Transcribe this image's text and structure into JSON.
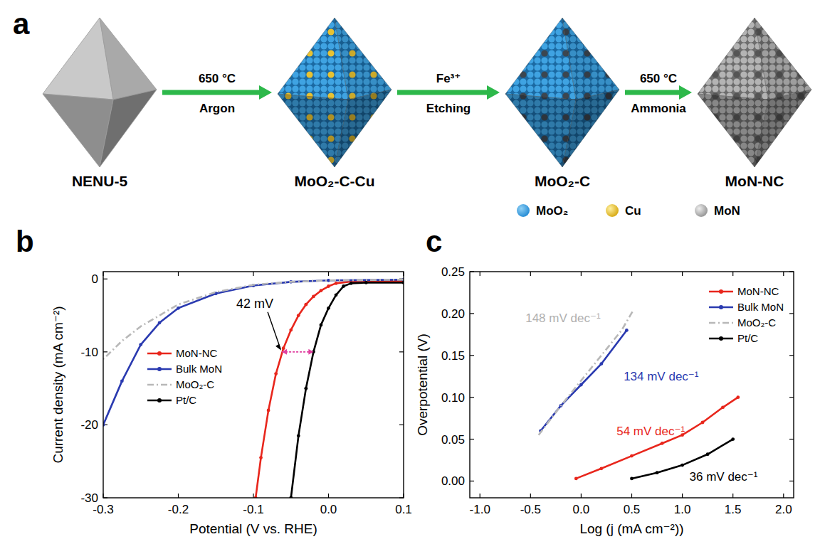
{
  "diagram": {
    "panel": "a",
    "nodes": [
      {
        "label": "NENU-5"
      },
      {
        "label": "MoO₂-C-Cu"
      },
      {
        "label": "MoO₂-C"
      },
      {
        "label": "MoN-NC"
      }
    ],
    "arrows": [
      {
        "above": "650 °C",
        "below": "Argon"
      },
      {
        "above": "Fe³⁺",
        "below": "Etching"
      },
      {
        "above": "650 °C",
        "below": "Ammonia"
      }
    ],
    "key": [
      {
        "label": "MoO₂"
      },
      {
        "label": "Cu"
      },
      {
        "label": "MoN"
      }
    ]
  },
  "chart_data": [
    {
      "panel": "b",
      "type": "line",
      "x_label": "Potential (V vs. RHE)",
      "y_label": "Current density (mA cm⁻²)",
      "xlim": [
        -0.3,
        0.1
      ],
      "ylim": [
        -30,
        1
      ],
      "xticks": [
        -0.3,
        -0.2,
        -0.1,
        {
          "value": 0,
          "label": "0.0"
        },
        0.1
      ],
      "yticks": [
        -30,
        -20,
        -10,
        0
      ],
      "legend": "center left",
      "series": [
        {
          "name": "MoN-NC",
          "color": "#e8261c",
          "marker": "circle",
          "line_style": "solid",
          "x": [
            0.1,
            0.05,
            0.03,
            0.01,
            0,
            -0.01,
            -0.02,
            -0.03,
            -0.04,
            -0.05,
            -0.06,
            -0.07,
            -0.08,
            -0.09,
            -0.097
          ],
          "values": [
            -0.3,
            -0.3,
            -0.35,
            -0.6,
            -1,
            -1.6,
            -2.4,
            -3.5,
            -5,
            -7,
            -9.5,
            -13,
            -18,
            -24.5,
            -30
          ]
        },
        {
          "name": "Bulk MoN",
          "color": "#2a3ab0",
          "marker": "circle",
          "line_style": "solid",
          "x": [
            0.1,
            0,
            -0.05,
            -0.1,
            -0.15,
            -0.2,
            -0.225,
            -0.25,
            -0.275,
            -0.3
          ],
          "values": [
            -0.1,
            -0.2,
            -0.4,
            -0.9,
            -2,
            -4,
            -6,
            -9,
            -14,
            -20
          ]
        },
        {
          "name": "MoO₂-C",
          "color": "#b8b8b8",
          "marker": "none",
          "line_style": "dashdot",
          "x": [
            0.1,
            0,
            -0.05,
            -0.1,
            -0.15,
            -0.2,
            -0.25,
            -0.275,
            -0.3
          ],
          "values": [
            -0.1,
            -0.2,
            -0.4,
            -0.8,
            -1.8,
            -3.5,
            -6.5,
            -8.5,
            -11
          ]
        },
        {
          "name": "Pt/C",
          "color": "#000000",
          "marker": "circle",
          "line_style": "solid",
          "x": [
            0.1,
            0.05,
            0.03,
            0.02,
            0.01,
            0,
            -0.01,
            -0.02,
            -0.03,
            -0.04,
            -0.05
          ],
          "values": [
            -0.5,
            -0.5,
            -0.6,
            -1,
            -2.2,
            -4,
            -6.3,
            -10,
            -15,
            -21.5,
            -30
          ]
        }
      ],
      "annotations": [
        {
          "text": "42 mV",
          "x": [
            -0.062,
            -0.02
          ],
          "y": -10,
          "color": "#e040a0"
        }
      ]
    },
    {
      "panel": "c",
      "type": "line",
      "x_label": "Log (j (mA cm⁻²))",
      "y_label": "Overpotential (V)",
      "xlim": [
        -1.1,
        2.1
      ],
      "ylim": [
        -0.02,
        0.25
      ],
      "xticks": [
        {
          "value": -1,
          "label": "-1.0"
        },
        -0.5,
        {
          "value": 0,
          "label": "0.0"
        },
        0.5,
        {
          "value": 1,
          "label": "1.0"
        },
        1.5,
        {
          "value": 2,
          "label": "2.0"
        }
      ],
      "yticks": [
        {
          "value": 0,
          "label": "0.00"
        },
        0.05,
        {
          "value": 0.1,
          "label": "0.10"
        },
        0.15,
        {
          "value": 0.2,
          "label": "0.20"
        },
        0.25
      ],
      "legend": "upper right",
      "series": [
        {
          "name": "MoN-NC",
          "color": "#e8261c",
          "marker": "circle",
          "line_style": "solid",
          "x": [
            -0.05,
            0.2,
            0.5,
            0.8,
            1.0,
            1.2,
            1.4,
            1.55
          ],
          "values": [
            0.003,
            0.015,
            0.03,
            0.045,
            0.055,
            0.07,
            0.088,
            0.1
          ]
        },
        {
          "name": "Bulk MoN",
          "color": "#2a3ab0",
          "marker": "circle",
          "line_style": "solid",
          "x": [
            -0.4,
            -0.2,
            0,
            0.2,
            0.45
          ],
          "values": [
            0.06,
            0.09,
            0.115,
            0.14,
            0.18
          ]
        },
        {
          "name": "MoO₂-C",
          "color": "#b8b8b8",
          "marker": "none",
          "line_style": "dashdot",
          "x": [
            -0.42,
            -0.2,
            0,
            0.2,
            0.4,
            0.52
          ],
          "values": [
            0.055,
            0.09,
            0.12,
            0.15,
            0.18,
            0.205
          ]
        },
        {
          "name": "Pt/C",
          "color": "#000000",
          "marker": "circle",
          "line_style": "solid",
          "x": [
            0.5,
            0.75,
            1.0,
            1.25,
            1.5
          ],
          "values": [
            0.003,
            0.01,
            0.019,
            0.032,
            0.05
          ]
        }
      ],
      "annotations": [
        {
          "text": "148 mV dec⁻¹",
          "x": -0.55,
          "y": 0.19,
          "color": "#b0b0b0"
        },
        {
          "text": "134 mV dec⁻¹",
          "x": 0.42,
          "y": 0.12,
          "color": "#2a3ab0"
        },
        {
          "text": "54 mV dec⁻¹",
          "x": 0.35,
          "y": 0.055,
          "color": "#e8261c"
        },
        {
          "text": "36 mV dec⁻¹",
          "x": 1.07,
          "y": 0.0,
          "color": "#000000"
        }
      ]
    }
  ]
}
